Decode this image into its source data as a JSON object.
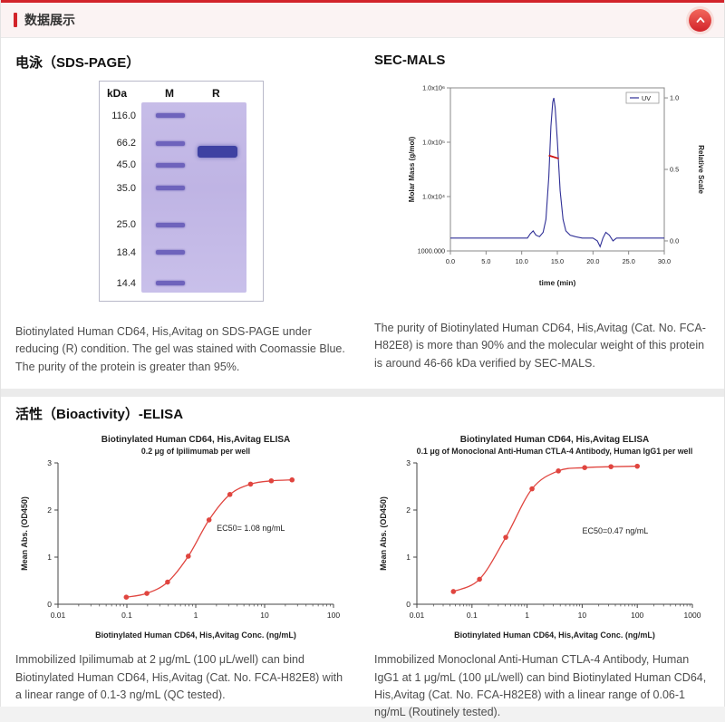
{
  "header": {
    "title": "数据展示",
    "collapse_icon": "chevron-up-icon"
  },
  "sections": {
    "sds": {
      "heading": "电泳（SDS-PAGE）",
      "gel": {
        "unit": "kDa",
        "lane_m": "M",
        "lane_r": "R",
        "marker_labels": [
          "116.0",
          "66.2",
          "45.0",
          "35.0",
          "25.0",
          "18.4",
          "14.4"
        ]
      },
      "caption": "Biotinylated Human CD64, His,Avitag on SDS-PAGE under reducing (R) condition. The gel was stained with Coomassie Blue. The purity of the protein is greater than 95%."
    },
    "secmals": {
      "heading": "SEC-MALS",
      "caption": "The purity of Biotinylated Human CD64, His,Avitag (Cat. No. FCA-H82E8) is more than 90% and the molecular weight of this protein is around 46-66 kDa verified by SEC-MALS."
    },
    "elisa": {
      "heading": "活性（Bioactivity）-ELISA",
      "left": {
        "caption": "Immobilized Ipilimumab at 2 μg/mL (100 μL/well) can bind Biotinylated Human CD64, His,Avitag (Cat. No. FCA-H82E8) with a linear range of 0.1-3 ng/mL (QC tested)."
      },
      "right": {
        "caption": "Immobilized Monoclonal Anti-Human CTLA-4 Antibody, Human IgG1 at 1 μg/mL (100 μL/well) can bind Biotinylated Human CD64, His,Avitag (Cat. No. FCA-H82E8) with a linear range of 0.06-1 ng/mL (Routinely tested)."
      }
    }
  },
  "chart_data": [
    {
      "id": "sec-mals",
      "type": "line",
      "title": "",
      "xlabel": "time (min)",
      "ylabel_left": "Molar Mass (g/mol)",
      "ylabel_right": "Relative Scale",
      "xlim": [
        0,
        30
      ],
      "x_ticks": [
        0.0,
        5.0,
        10.0,
        15.0,
        20.0,
        25.0,
        30.0
      ],
      "left_log_lim": [
        1000,
        1000000
      ],
      "left_tick_labels": [
        "1.0x10⁶",
        "1.0x10⁵",
        "1.0x10⁴",
        "1000.000"
      ],
      "right_lim": [
        -0.07,
        1.07
      ],
      "right_ticks": [
        1.0,
        0.5,
        0.0
      ],
      "right_tick_labels": [
        "1.0",
        "0.5",
        "0.0"
      ],
      "legend": [
        "UV"
      ],
      "grid": false,
      "series": [
        {
          "name": "UV",
          "color": "#2f2f96",
          "axis": "right",
          "x": [
            0,
            5,
            10,
            10.8,
            11.2,
            11.6,
            12,
            12.5,
            13,
            13.4,
            13.8,
            14.1,
            14.35,
            14.5,
            14.7,
            15,
            15.4,
            15.8,
            16.2,
            16.8,
            17.5,
            18.5,
            20,
            20.6,
            21,
            21.4,
            21.8,
            22.3,
            22.8,
            23.3,
            24,
            26,
            28,
            30
          ],
          "y": [
            0.02,
            0.02,
            0.02,
            0.02,
            0.05,
            0.07,
            0.04,
            0.03,
            0.06,
            0.15,
            0.45,
            0.8,
            0.97,
            1.0,
            0.93,
            0.7,
            0.35,
            0.15,
            0.07,
            0.04,
            0.03,
            0.02,
            0.02,
            0.0,
            -0.04,
            0.02,
            0.06,
            0.04,
            0.0,
            0.02,
            0.02,
            0.02,
            0.02,
            0.02
          ]
        },
        {
          "name": "Molar Mass",
          "color": "#cc1111",
          "axis": "left_log",
          "x": [
            13.8,
            15.2
          ],
          "y": [
            57000,
            50000
          ]
        }
      ]
    },
    {
      "id": "elisa-left",
      "type": "scatter",
      "title": "Biotinylated Human CD64, His,Avitag ELISA",
      "subtitle": "0.2 μg of Ipilimumab per well",
      "xlabel": "Biotinylated Human CD64, His,Avitag Conc. (ng/mL)",
      "ylabel": "Mean Abs. (OD450)",
      "xscale": "log",
      "xlim": [
        0.01,
        100
      ],
      "x_ticks": [
        0.01,
        0.1,
        1,
        10,
        100
      ],
      "ylim": [
        0,
        3
      ],
      "y_ticks": [
        0,
        1,
        2,
        3
      ],
      "annotation": "EC50= 1.08 ng/mL",
      "color": "#e0453f",
      "x": [
        0.098,
        0.195,
        0.39,
        0.78,
        1.56,
        3.13,
        6.25,
        12.5,
        25
      ],
      "y": [
        0.15,
        0.23,
        0.47,
        1.02,
        1.79,
        2.33,
        2.55,
        2.62,
        2.64
      ]
    },
    {
      "id": "elisa-right",
      "type": "scatter",
      "title": "Biotinylated Human CD64, His,Avitag ELISA",
      "subtitle": "0.1 μg of Monoclonal Anti-Human CTLA-4 Antibody, Human IgG1 per well",
      "xlabel": "Biotinylated Human CD64, His,Avitag Conc. (ng/mL)",
      "ylabel": "Mean Abs. (OD450)",
      "xscale": "log",
      "xlim": [
        0.01,
        1000
      ],
      "x_ticks": [
        0.01,
        0.1,
        1,
        10,
        100,
        1000
      ],
      "ylim": [
        0,
        3
      ],
      "y_ticks": [
        0,
        1,
        2,
        3
      ],
      "annotation": "EC50=0.47 ng/mL",
      "color": "#e0453f",
      "x": [
        0.046,
        0.137,
        0.41,
        1.23,
        3.7,
        11.1,
        33.3,
        100
      ],
      "y": [
        0.27,
        0.53,
        1.42,
        2.45,
        2.83,
        2.9,
        2.92,
        2.93
      ]
    }
  ]
}
